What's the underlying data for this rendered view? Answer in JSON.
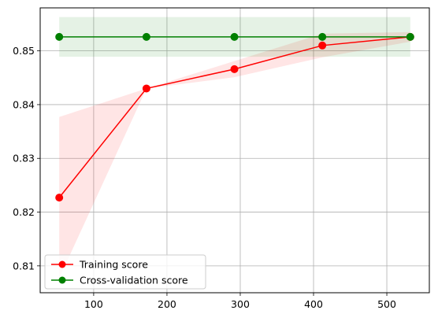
{
  "chart_data": {
    "type": "line",
    "title": "",
    "xlabel": "",
    "ylabel": "",
    "x": [
      53,
      172,
      292,
      412,
      532
    ],
    "xlim": [
      27,
      558
    ],
    "ylim": [
      0.805,
      0.858
    ],
    "xticks": [
      100,
      200,
      300,
      400,
      500
    ],
    "yticks": [
      0.81,
      0.82,
      0.83,
      0.84,
      0.85
    ],
    "xtick_labels": [
      "100",
      "200",
      "300",
      "400",
      "500"
    ],
    "ytick_labels": [
      "0.81",
      "0.82",
      "0.83",
      "0.84",
      "0.85"
    ],
    "grid": true,
    "legend_position": "lower-left",
    "series": [
      {
        "name": "Training score",
        "color": "#ff0000",
        "band_color": "#ff0000",
        "marker": "circle",
        "values": [
          0.8227,
          0.843,
          0.8466,
          0.851,
          0.8526
        ],
        "lower": [
          0.8077,
          0.843,
          0.8451,
          0.8488,
          0.8517
        ],
        "upper": [
          0.8377,
          0.843,
          0.8481,
          0.8532,
          0.8535
        ]
      },
      {
        "name": "Cross-validation score",
        "color": "#008000",
        "band_color": "#008000",
        "marker": "circle",
        "values": [
          0.8526,
          0.8526,
          0.8526,
          0.8526,
          0.8526
        ],
        "lower": [
          0.8489,
          0.8489,
          0.8489,
          0.8489,
          0.8489
        ],
        "upper": [
          0.8563,
          0.8563,
          0.8563,
          0.8563,
          0.8563
        ]
      }
    ]
  }
}
